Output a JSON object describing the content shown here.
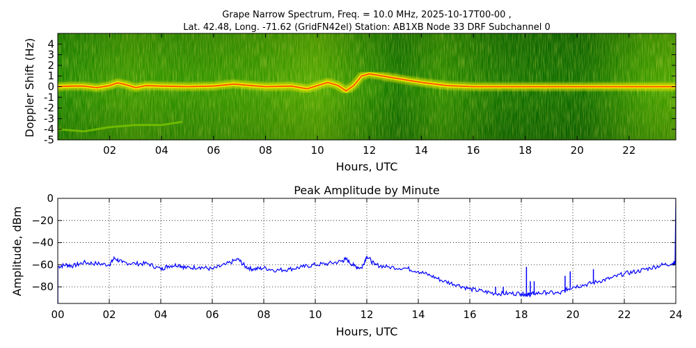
{
  "chart_data": [
    {
      "type": "heatmap",
      "title": "Grape Narrow Spectrum, Freq. = 10.0 MHz, 2025-10-17T00-00 ,",
      "subtitle": "Lat.  42.48, Long. -71.62 (GridFN42el) Station: AB1XB Node 33 DRF Subchannel 0",
      "xlabel": "Hours, UTC",
      "ylabel": "Doppler Shift (Hz)",
      "xlim": [
        0,
        23.8
      ],
      "ylim": [
        -5,
        5
      ],
      "x_ticks": [
        {
          "value": 2,
          "label": "02"
        },
        {
          "value": 4,
          "label": "04"
        },
        {
          "value": 6,
          "label": "06"
        },
        {
          "value": 8,
          "label": "08"
        },
        {
          "value": 10,
          "label": "10"
        },
        {
          "value": 12,
          "label": "12"
        },
        {
          "value": 14,
          "label": "14"
        },
        {
          "value": 16,
          "label": "16"
        },
        {
          "value": 18,
          "label": "18"
        },
        {
          "value": 20,
          "label": "20"
        },
        {
          "value": 22,
          "label": "22"
        }
      ],
      "y_ticks": [
        {
          "value": 4,
          "label": "4"
        },
        {
          "value": 3,
          "label": "3"
        },
        {
          "value": 2,
          "label": "2"
        },
        {
          "value": 1,
          "label": "1"
        },
        {
          "value": 0,
          "label": "0"
        },
        {
          "value": -1,
          "label": "-1"
        },
        {
          "value": -2,
          "label": "-2"
        },
        {
          "value": -3,
          "label": "-3"
        },
        {
          "value": -4,
          "label": "-4"
        },
        {
          "value": -5,
          "label": "-5"
        }
      ],
      "colors": {
        "low": "#0a6e00",
        "mid": "#7ac400",
        "high": "#f2e900",
        "peak": "#ff2a00"
      },
      "carrier_trace": {
        "hours": [
          0,
          0.5,
          1,
          1.5,
          2,
          2.3,
          2.6,
          3,
          3.4,
          4,
          5,
          6,
          6.8,
          7.2,
          8,
          9,
          9.6,
          10,
          10.4,
          10.8,
          11.1,
          11.4,
          11.7,
          12,
          13,
          14,
          15,
          16,
          18,
          20,
          22,
          23.8
        ],
        "doppler_hz": [
          0,
          0.05,
          0.05,
          -0.1,
          0.1,
          0.35,
          0.2,
          -0.1,
          0.1,
          0.05,
          0.0,
          0.05,
          0.25,
          0.15,
          0.0,
          0.05,
          -0.2,
          0.1,
          0.4,
          0.1,
          -0.4,
          0.1,
          1.0,
          1.2,
          0.8,
          0.4,
          0.1,
          0.0,
          0.0,
          0.0,
          0.0,
          0.0
        ]
      },
      "secondary_trace": {
        "hours": [
          0,
          1,
          2,
          3,
          4,
          4.8
        ],
        "doppler_hz": [
          -4.0,
          -4.2,
          -3.8,
          -3.6,
          -3.6,
          -3.3
        ]
      }
    },
    {
      "type": "line",
      "title": "Peak Amplitude by Minute",
      "xlabel": "Hours, UTC",
      "ylabel": "Amplitude, dBm",
      "xlim": [
        0,
        24
      ],
      "ylim": [
        -95,
        0
      ],
      "x_ticks": [
        {
          "value": 0,
          "label": "00"
        },
        {
          "value": 2,
          "label": "02"
        },
        {
          "value": 4,
          "label": "04"
        },
        {
          "value": 6,
          "label": "06"
        },
        {
          "value": 8,
          "label": "08"
        },
        {
          "value": 10,
          "label": "10"
        },
        {
          "value": 12,
          "label": "12"
        },
        {
          "value": 14,
          "label": "14"
        },
        {
          "value": 16,
          "label": "16"
        },
        {
          "value": 18,
          "label": "18"
        },
        {
          "value": 20,
          "label": "20"
        },
        {
          "value": 22,
          "label": "22"
        },
        {
          "value": 24,
          "label": "24"
        }
      ],
      "y_ticks": [
        {
          "value": 0,
          "label": "0"
        },
        {
          "value": -20,
          "label": "−20"
        },
        {
          "value": -40,
          "label": "−40"
        },
        {
          "value": -60,
          "label": "−60"
        },
        {
          "value": -80,
          "label": "−80"
        }
      ],
      "grid": true,
      "line_color": "#0000ff",
      "series": [
        {
          "x": [
            0,
            0.3,
            0.6,
            1,
            1.5,
            2,
            2.2,
            2.5,
            3,
            3.5,
            4,
            4.3,
            4.7,
            5,
            5.5,
            6,
            6.5,
            7,
            7.3,
            7.6,
            8,
            8.5,
            9,
            9.5,
            10,
            10.5,
            11,
            11.2,
            11.5,
            11.8,
            12,
            12.3,
            12.8,
            13.5,
            14,
            14.5,
            15,
            15.5,
            16,
            16.5,
            17,
            17.5,
            18,
            18.2,
            18.3,
            18.5,
            19,
            19.5,
            19.8,
            20,
            20.5,
            21,
            21.5,
            22,
            22.5,
            23,
            23.5,
            23.9,
            23.97,
            24
          ],
          "y": [
            -62,
            -60,
            -61,
            -58,
            -59,
            -60,
            -54,
            -58,
            -59,
            -59,
            -64,
            -61,
            -60,
            -63,
            -62,
            -64,
            -60,
            -55,
            -62,
            -64,
            -63,
            -65,
            -64,
            -62,
            -60,
            -59,
            -57,
            -55,
            -61,
            -63,
            -52,
            -60,
            -62,
            -63,
            -66,
            -70,
            -75,
            -78,
            -82,
            -84,
            -86,
            -86,
            -86,
            -87,
            -87,
            -86,
            -85,
            -86,
            -82,
            -80,
            -78,
            -75,
            -72,
            -68,
            -66,
            -63,
            -60,
            -59,
            -58,
            0
          ]
        }
      ],
      "spikes": [
        {
          "x": 17.0,
          "y": -80
        },
        {
          "x": 17.3,
          "y": -80
        },
        {
          "x": 18.2,
          "y": -62
        },
        {
          "x": 18.35,
          "y": -75
        },
        {
          "x": 18.5,
          "y": -75
        },
        {
          "x": 19.7,
          "y": -70
        },
        {
          "x": 19.9,
          "y": -66
        },
        {
          "x": 20.3,
          "y": -78
        },
        {
          "x": 20.8,
          "y": -64
        }
      ]
    }
  ]
}
